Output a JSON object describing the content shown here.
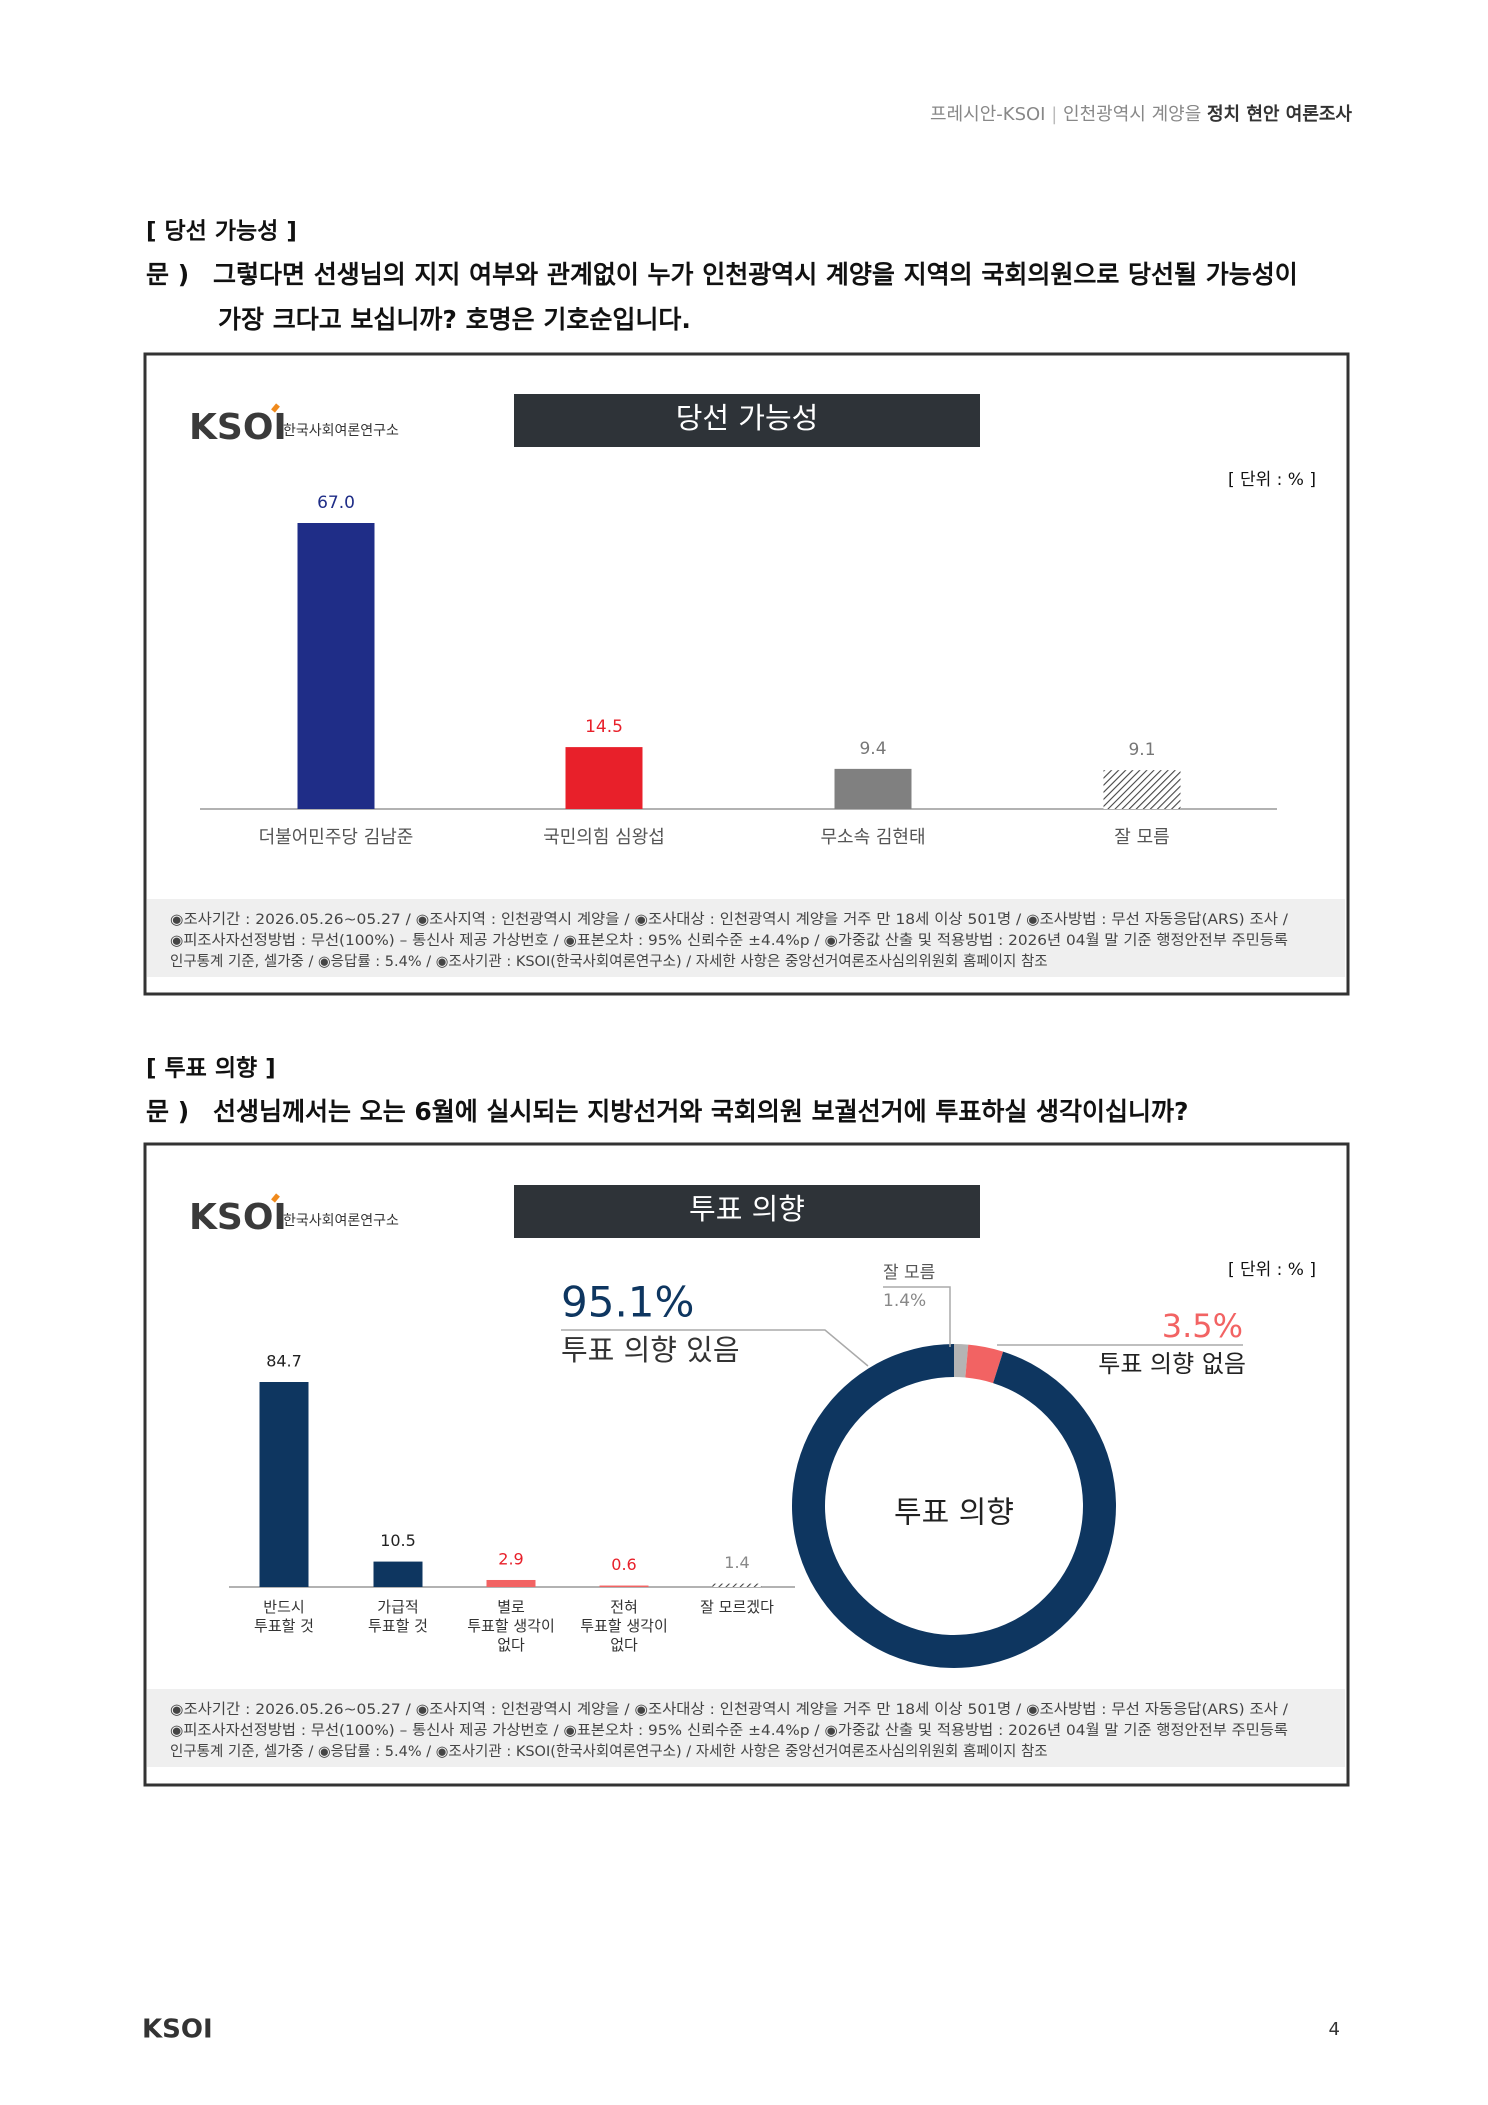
{
  "header": {
    "publisher": "프레시안-KSOI",
    "separator": "|",
    "region": "인천광역시 계양을",
    "topic": "정치 현안 여론조사"
  },
  "sections": [
    {
      "heading": "[ 당선 가능성 ]",
      "question_label": "문 )",
      "question": [
        "그렇다면 선생님의 지지 여부와 관계없이 누가 인천광역시 계양을 지역의 국회의원으로 당선될 가능성이",
        "가장 크다고 보십니까? 호명은 기호순입니다."
      ]
    },
    {
      "heading": "[ 투표 의향 ]",
      "question_label": "문 )",
      "question": [
        "선생님께서는 오는 6월에 실시되는 지방선거와 국회의원 보궐선거에 투표하실 생각이십니까?"
      ]
    }
  ],
  "panels": [
    {
      "logo": "KSOI",
      "logo_caption": "한국사회여론연구소",
      "footnote": [
        "◉조사기간 : 2026.05.26~05.27 / ◉조사지역 : 인천광역시 계양을 / ◉조사대상 : 인천광역시 계양을 거주 만 18세 이상 501명 / ◉조사방법 : 무선 자동응답(ARS) 조사 /",
        "◉피조사자선정방법 : 무선(100%) – 통신사 제공 가상번호 / ◉표본오차 : 95% 신뢰수준 ±4.4%p / ◉가중값 산출 및 적용방법 : 2026년 04월 말 기준 행정안전부 주민등록",
        "인구통계 기준, 셀가중 / ◉응답률 : 5.4% / ◉조사기관 : KSOI(한국사회여론연구소) / 자세한 사항은 중앙선거여론조사심의위원회 홈페이지 참조"
      ]
    },
    {
      "logo": "KSOI",
      "logo_caption": "한국사회여론연구소",
      "footnote": [
        "◉조사기간 : 2026.05.26~05.27 / ◉조사지역 : 인천광역시 계양을 / ◉조사대상 : 인천광역시 계양을 거주 만 18세 이상 501명 / ◉조사방법 : 무선 자동응답(ARS) 조사 /",
        "◉피조사자선정방법 : 무선(100%) – 통신사 제공 가상번호 / ◉표본오차 : 95% 신뢰수준 ±4.4%p / ◉가중값 산출 및 적용방법 : 2026년 04월 말 기준 행정안전부 주민등록",
        "인구통계 기준, 셀가중 / ◉응답률 : 5.4% / ◉조사기관 : KSOI(한국사회여론연구소) / 자세한 사항은 중앙선거여론조사심의위원회 홈페이지 참조"
      ]
    }
  ],
  "chart_data": [
    {
      "type": "bar",
      "title": "당선 가능성",
      "unit": "[ 단위 : % ]",
      "categories": [
        "더불어민주당 김남준",
        "국민의힘 심왕섭",
        "무소속 김현태",
        "잘 모름"
      ],
      "values": [
        67.0,
        14.5,
        9.4,
        9.1
      ],
      "value_labels": [
        "67.0",
        "14.5",
        "9.4",
        "9.1"
      ],
      "colors": [
        "#1f2d87",
        "#e8202a",
        "#808080",
        "#555555"
      ],
      "pattern": [
        "solid",
        "solid",
        "solid",
        "hatch"
      ],
      "label_colors": [
        "#1f2d87",
        "#e8202a",
        "#777777",
        "#777777"
      ]
    },
    {
      "type": "bar",
      "title": "투표 의향",
      "unit": "[ 단위 : % ]",
      "categories": [
        [
          "반드시",
          "투표할 것"
        ],
        [
          "가급적",
          "투표할 것"
        ],
        [
          "별로",
          "투표할 생각이",
          "없다"
        ],
        [
          "전혀",
          "투표할 생각이",
          "없다"
        ],
        [
          "잘 모르겠다"
        ]
      ],
      "values": [
        84.7,
        10.5,
        2.9,
        0.6,
        1.4
      ],
      "value_labels": [
        "84.7",
        "10.5",
        "2.9",
        "0.6",
        "1.4"
      ],
      "colors": [
        "#0e3660",
        "#0e3660",
        "#f26363",
        "#f26363",
        "#555555"
      ],
      "pattern": [
        "solid",
        "solid",
        "solid",
        "solid",
        "hatch"
      ],
      "label_colors": [
        "#222222",
        "#222222",
        "#e8202a",
        "#e8202a",
        "#888888"
      ]
    },
    {
      "type": "pie",
      "center_label": "투표 의향",
      "categories": [
        "잘 모름",
        "투표 의향 없음",
        "투표 의향 있음"
      ],
      "values": [
        1.4,
        3.5,
        95.1
      ],
      "value_labels": [
        "1.4%",
        "3.5%",
        "95.1%"
      ],
      "colors": [
        "#b4b4b4",
        "#f26363",
        "#0e3660"
      ]
    }
  ],
  "footer": {
    "logo": "KSOI",
    "page": "4"
  }
}
